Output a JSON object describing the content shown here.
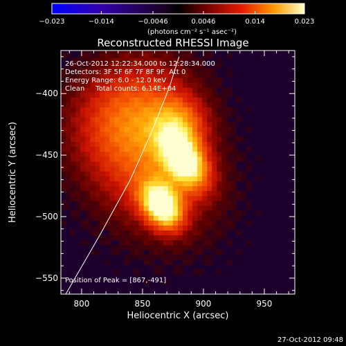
{
  "chart_data": {
    "type": "heatmap",
    "title": "Reconstructed RHESSI Image",
    "xlabel": "Heliocentric X (arcsec)",
    "ylabel": "Heliocentric Y (arcsec)",
    "xlim": [
      783,
      975
    ],
    "ylim": [
      -563,
      -365
    ],
    "x_ticks": [
      800,
      850,
      900,
      950
    ],
    "x_tick_labels": [
      "800",
      "850",
      "900",
      "950"
    ],
    "y_ticks": [
      -550,
      -500,
      -450,
      -400
    ],
    "y_tick_labels": [
      "−550",
      "−500",
      "−450",
      "−400"
    ],
    "colorbar": {
      "min": -0.023,
      "max": 0.023,
      "ticks": [
        -0.023,
        -0.014,
        -0.0046,
        0.0046,
        0.014,
        0.023
      ],
      "tick_labels": [
        "−0.023",
        "−0.014",
        "−0.0046",
        "0.0046",
        "0.014",
        "0.023"
      ],
      "units": "(photons cm⁻² s⁻¹ asec⁻²)"
    },
    "annotations": [
      "26-Oct-2012 12:22:34.000 to 12:28:34.000",
      "Detectors: 3F 5F 6F 7F 8F 9F  Att 0",
      "Energy Range: 6.0 - 12.0 keV",
      "Clean     Total counts: 6.14E+04"
    ],
    "peak_label": "Position of Peak = [867,-491]",
    "peak": [
      867,
      -491
    ],
    "sources": [
      {
        "x": 866,
        "y": -491,
        "sx": 10,
        "sy": 14,
        "amp": 1.0
      },
      {
        "x": 885,
        "y": -455,
        "sx": 11,
        "sy": 17,
        "amp": 0.85
      },
      {
        "x": 880,
        "y": -425,
        "sx": 16,
        "sy": 16,
        "amp": 0.42
      },
      {
        "x": 855,
        "y": -455,
        "sx": 34,
        "sy": 42,
        "amp": 0.5
      },
      {
        "x": 840,
        "y": -410,
        "sx": 36,
        "sy": 28,
        "amp": 0.35
      }
    ],
    "limb_curve": [
      [
        787,
        -563
      ],
      [
        815,
        -515
      ],
      [
        840,
        -470
      ],
      [
        858,
        -430
      ],
      [
        872,
        -395
      ],
      [
        880,
        -370
      ]
    ],
    "grid": false,
    "colormap": "hot"
  },
  "timestamp": "27-Oct-2012 09:48"
}
